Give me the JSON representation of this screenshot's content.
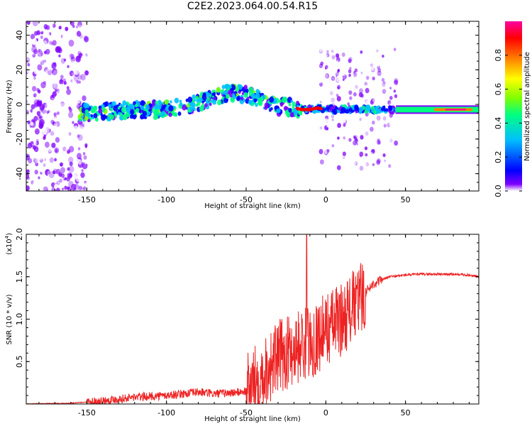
{
  "title": "C2E2.2023.064.00.54.R15",
  "chart_data": [
    {
      "type": "heatmap",
      "xlabel": "Height of straight line (km)",
      "ylabel": "Frequency (Hz)",
      "xlim": [
        -188,
        96
      ],
      "ylim": [
        -50,
        48
      ],
      "xticks": [
        -150,
        -100,
        -50,
        0,
        50
      ],
      "yticks": [
        -40,
        -20,
        0,
        20,
        40
      ],
      "ridge": {
        "x": [
          -150,
          -120,
          -100,
          -80,
          -70,
          -60,
          -50,
          -40,
          -30,
          -20,
          -15,
          -10,
          -5,
          0,
          20,
          40,
          45,
          60,
          80,
          95
        ],
        "freq": [
          -5,
          -3,
          -3,
          1,
          4,
          7,
          6,
          2,
          -1,
          -2,
          -3,
          -3,
          -2,
          -3,
          -3,
          -3,
          -3,
          -3,
          -3,
          -3
        ]
      },
      "colorbar": {
        "label": "Normalized spectral amplitude",
        "range": [
          0.0,
          1.0
        ],
        "ticks": [
          "0.0",
          "0.2",
          "0.4",
          "0.6",
          "0.8"
        ],
        "colors": [
          "#ffffff",
          "#7f00ff",
          "#0000ff",
          "#00bfff",
          "#00ff80",
          "#80ff00",
          "#ffff00",
          "#ff8000",
          "#ff0000",
          "#ff00a0"
        ]
      }
    },
    {
      "type": "line",
      "xlabel": "Height of straight line (km)",
      "ylabel": "SNR (10 * v/v)",
      "y_multiplier": "(x10",
      "y_multiplier_exp": "4",
      "xlim": [
        -188,
        96
      ],
      "ylim": [
        0,
        2.0
      ],
      "xticks": [
        -150,
        -100,
        -50,
        0,
        50
      ],
      "yticks": [
        "0.5",
        "1.0",
        "1.5",
        "2.0"
      ],
      "color": "#ee2222",
      "series": [
        {
          "x": [
            -188,
            -160,
            -145,
            -130,
            -120,
            -110,
            -100,
            -90,
            -80,
            -70,
            -60,
            -50,
            -45,
            -40,
            -35,
            -30,
            -25,
            -20,
            -15,
            -10,
            -5,
            0,
            5,
            10,
            15,
            20,
            25,
            30,
            40,
            50,
            60,
            70,
            80,
            90,
            96
          ],
          "y": [
            0.0,
            0.01,
            0.03,
            0.06,
            0.08,
            0.09,
            0.1,
            0.12,
            0.14,
            0.12,
            0.13,
            0.15,
            0.25,
            0.35,
            0.45,
            0.55,
            0.6,
            0.65,
            0.7,
            0.72,
            0.8,
            0.88,
            0.95,
            1.0,
            1.1,
            1.2,
            1.32,
            1.42,
            1.5,
            1.52,
            1.53,
            1.53,
            1.53,
            1.52,
            1.5
          ]
        }
      ]
    }
  ]
}
